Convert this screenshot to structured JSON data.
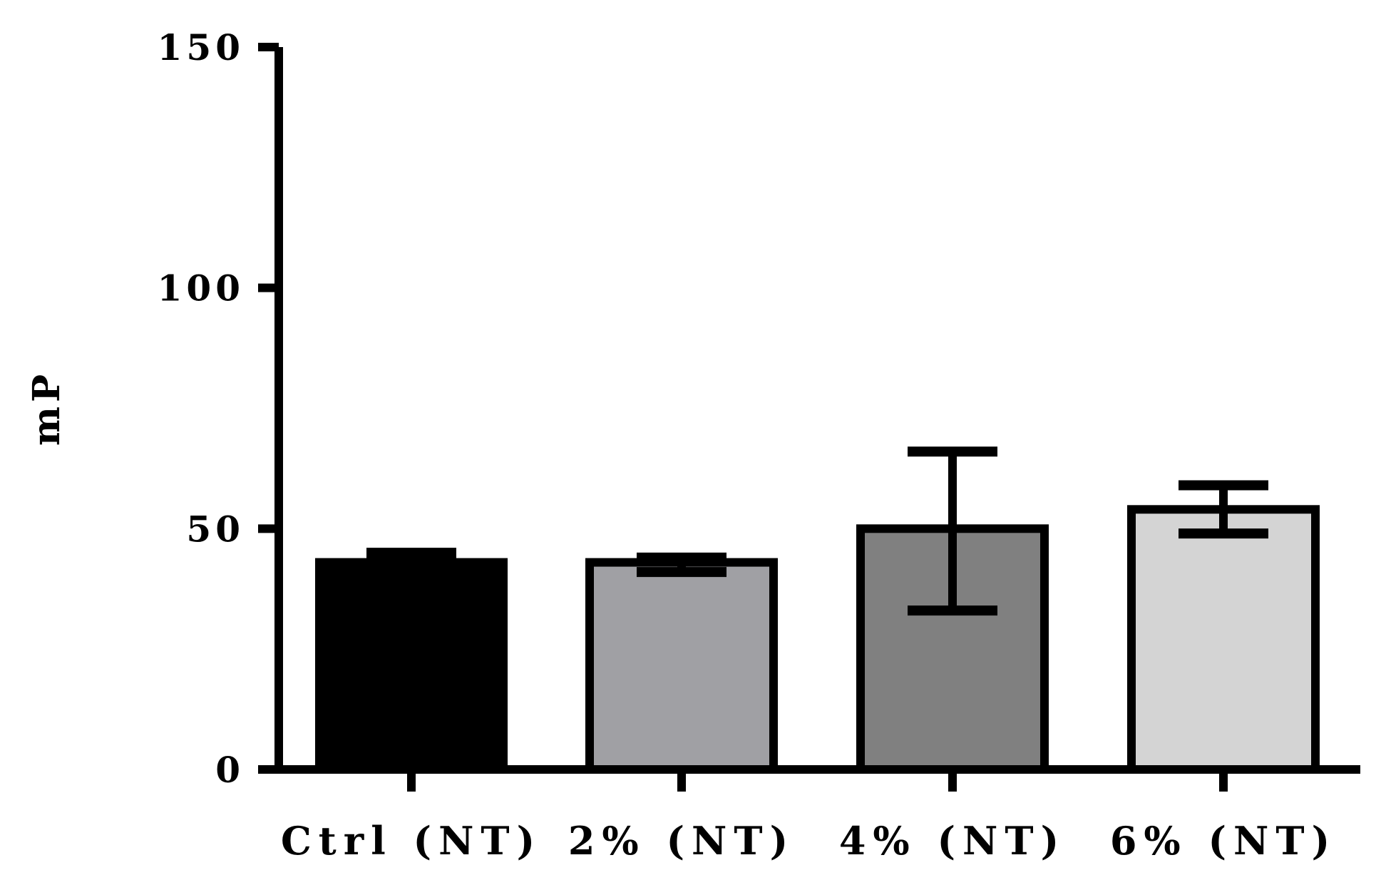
{
  "chart_data": {
    "type": "bar",
    "title": "",
    "xlabel": "",
    "ylabel": "mP",
    "ylim": [
      0,
      150
    ],
    "yticks": [
      0,
      50,
      100,
      150
    ],
    "grid": false,
    "categories": [
      "Ctrl (NT)",
      "2% (NT)",
      "4% (NT)",
      "6% (NT)"
    ],
    "values": [
      43,
      43,
      50,
      54
    ],
    "error": [
      {
        "low": 43,
        "high": 45
      },
      {
        "low": 41,
        "high": 44
      },
      {
        "low": 33,
        "high": 66
      },
      {
        "low": 49,
        "high": 59
      }
    ],
    "bar_colors": [
      "#000000",
      "#a0a0a4",
      "#808080",
      "#d4d4d4"
    ],
    "axis_color": "#000000"
  }
}
